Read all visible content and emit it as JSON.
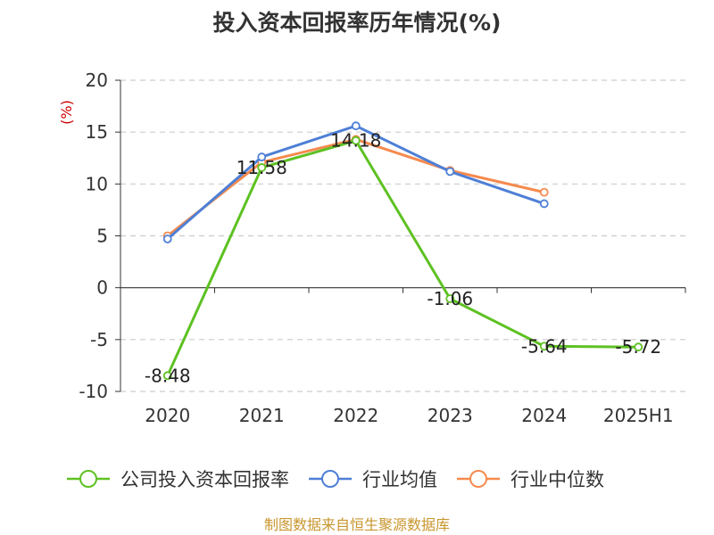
{
  "chart_data": {
    "type": "line",
    "title": "投入资本回报率历年情况(%)",
    "ylabel": "(%)",
    "xlabel": "",
    "categories": [
      "2020",
      "2021",
      "2022",
      "2023",
      "2024",
      "2025H1"
    ],
    "ylim": [
      -10,
      20
    ],
    "yticks": [
      20,
      15,
      10,
      5,
      0,
      -5,
      -10
    ],
    "grid": true,
    "legend_position": "bottom",
    "series": [
      {
        "name": "公司投入资本回报率",
        "color": "#5dc122",
        "values": [
          -8.48,
          11.58,
          14.18,
          -1.06,
          -5.64,
          -5.72
        ],
        "labels": [
          "-8.48",
          "11.58",
          "14.18",
          "-1.06",
          "-5.64",
          "-5.72"
        ]
      },
      {
        "name": "行业均值",
        "color": "#4e7fd6",
        "values": [
          4.7,
          12.6,
          15.6,
          11.2,
          8.1,
          null
        ]
      },
      {
        "name": "行业中位数",
        "color": "#f58a4e",
        "values": [
          5.0,
          12.1,
          14.3,
          11.3,
          9.2,
          null
        ]
      }
    ]
  },
  "footer": {
    "source": "制图数据来自恒生聚源数据库"
  }
}
